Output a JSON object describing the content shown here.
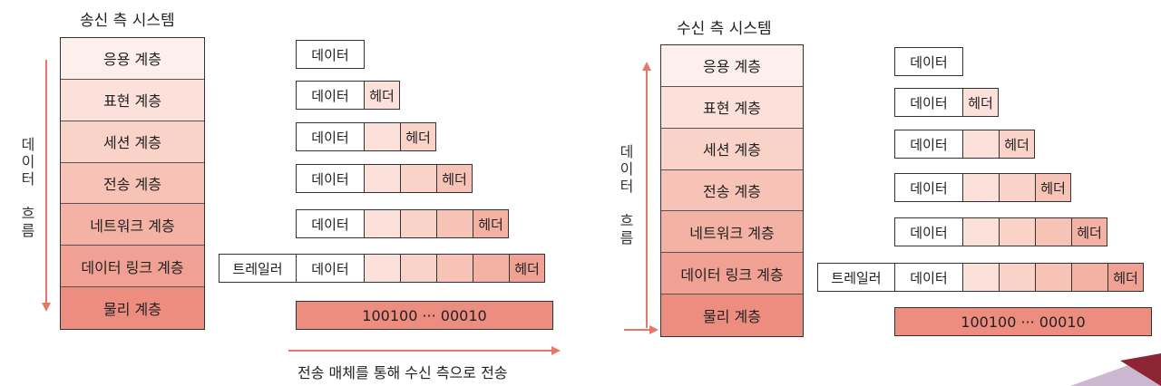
{
  "sender": {
    "title": "송신 측 시스템",
    "layers": [
      "응용 계층",
      "표현 계층",
      "세션 계층",
      "전송 계층",
      "네트워크 계층",
      "데이터 링크 계층",
      "물리 계층"
    ],
    "flow_label": [
      "데",
      "이",
      "터",
      "",
      "흐",
      "름"
    ]
  },
  "receiver": {
    "title": "수신 측 시스템",
    "layers": [
      "응용 계층",
      "표현 계층",
      "세션 계층",
      "전송 계층",
      "네트워크 계층",
      "데이터 링크 계층",
      "물리 계층"
    ],
    "flow_label": [
      "데",
      "이",
      "터",
      "",
      "흐",
      "름"
    ]
  },
  "packet": {
    "data": "데이터",
    "header": "헤더",
    "trailer": "트레일러",
    "bits": "100100 ··· 00010"
  },
  "transmission_caption": "전송 매체를 통해 수신 측으로 전송",
  "colors": {
    "layers": [
      "#fdf0ec",
      "#fbe1da",
      "#f9d2c8",
      "#f7c3b7",
      "#f4b2a5",
      "#f1a193",
      "#ec8d80"
    ],
    "encapsulation": [
      "#fbe1da",
      "#f9d2c8",
      "#f7c3b7",
      "#f4b2a5",
      "#f1a193"
    ],
    "arrow": "#e8776a",
    "deco_purple": "#cbb7cf",
    "deco_maroon": "#8c2634"
  }
}
